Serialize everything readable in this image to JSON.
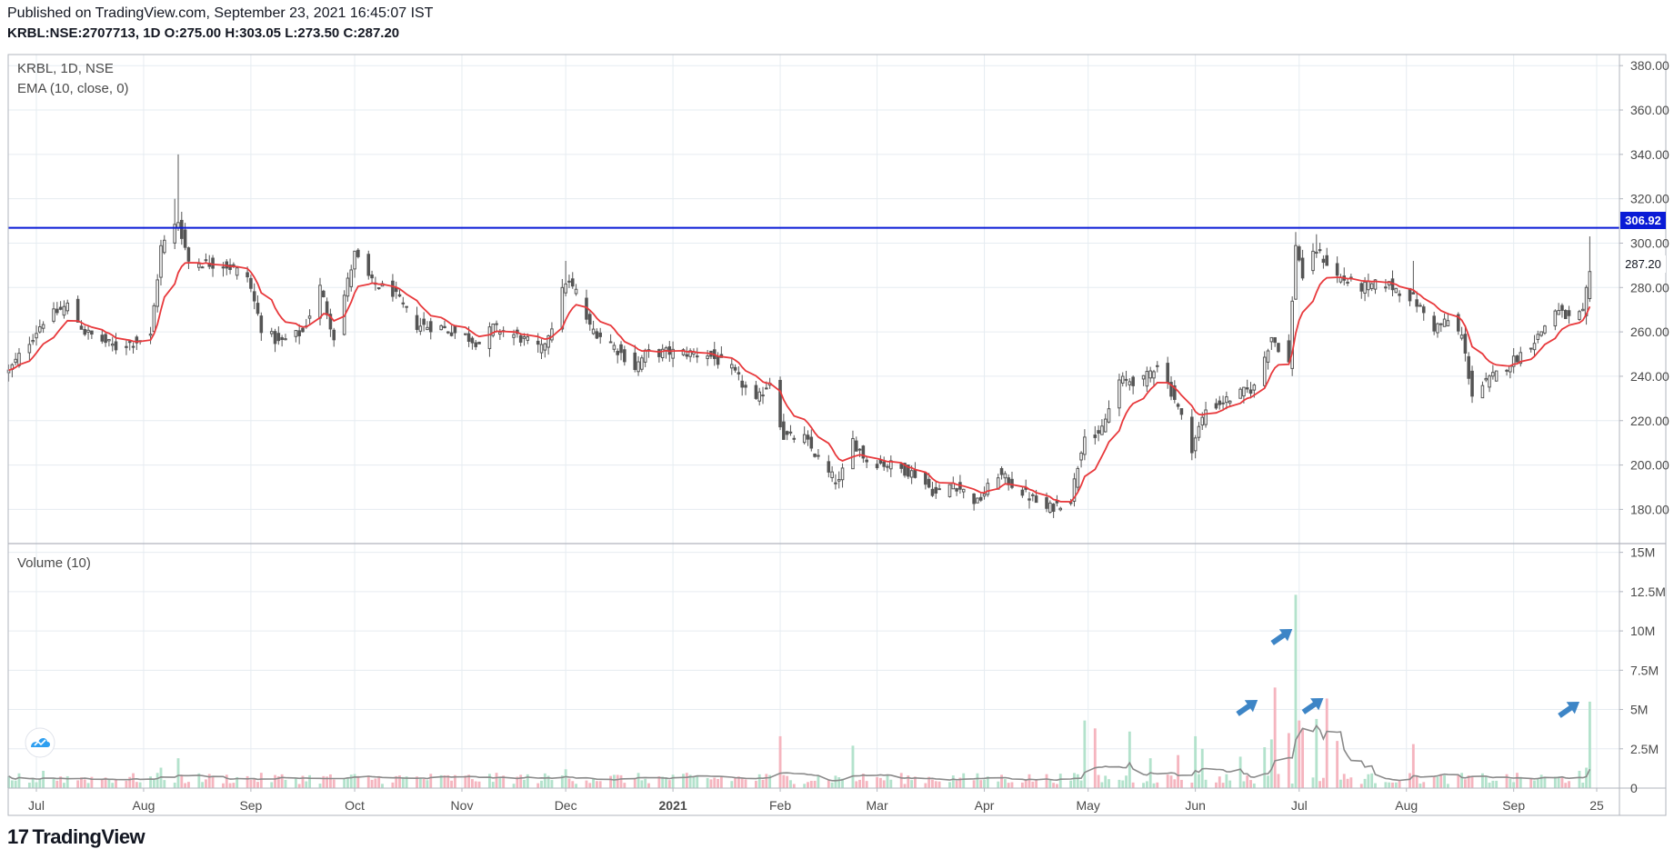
{
  "header": {
    "published": "Published on TradingView.com, September 23, 2021 16:45:07 IST",
    "symbol": "KRBL:NSE:2707713, 1D",
    "o_label": "O:",
    "o": "275.00",
    "h_label": "H:",
    "h": "303.05",
    "l_label": "L:",
    "l": "273.50",
    "c_label": "C:",
    "c": "287.20"
  },
  "legend": {
    "title": "KRBL, 1D, NSE",
    "ema": "EMA (10, close, 0)",
    "volume": "Volume (10)"
  },
  "price_badges": {
    "line_value": "306.92",
    "last_close": "287.20"
  },
  "footer": {
    "logo_text": "TradingView"
  },
  "colors": {
    "up": "#555555",
    "down": "#555555",
    "ema": "#e8393c",
    "hline": "#0a1bd6",
    "vol_up": "#b3e2cc",
    "vol_down": "#f5b5bf",
    "vol_ma": "#8a8a8a",
    "arrow": "#3d85c6",
    "grid": "#e6ecf1"
  },
  "chart_data": [
    {
      "type": "candlestick",
      "title": "KRBL, 1D, NSE",
      "y_ticks": [
        "380.00",
        "360.00",
        "340.00",
        "320.00",
        "300.00",
        "280.00",
        "260.00",
        "240.00",
        "220.00",
        "200.00",
        "180.00"
      ],
      "ylim": [
        165,
        385
      ],
      "x_ticks": [
        "Jul",
        "Aug",
        "Sep",
        "Oct",
        "Nov",
        "Dec",
        "2021",
        "Feb",
        "Mar",
        "Apr",
        "May",
        "Jun",
        "Jul",
        "Aug",
        "Sep",
        "25"
      ],
      "x_tick_dates": [
        "2020-07-01",
        "2020-08-01",
        "2020-09-01",
        "2020-10-01",
        "2020-11-01",
        "2020-12-01",
        "2021-01-01",
        "2021-02-01",
        "2021-03-01",
        "2021-04-01",
        "2021-05-01",
        "2021-06-01",
        "2021-07-01",
        "2021-08-01",
        "2021-09-01",
        "2021-09-25"
      ],
      "horizontal_line": 306.92,
      "close_anchors": [
        [
          "2020-06-23",
          242
        ],
        [
          "2020-07-03",
          265
        ],
        [
          "2020-07-10",
          272
        ],
        [
          "2020-07-15",
          260
        ],
        [
          "2020-07-24",
          253
        ],
        [
          "2020-08-03",
          258
        ],
        [
          "2020-08-06",
          298
        ],
        [
          "2020-08-11",
          310
        ],
        [
          "2020-08-14",
          292
        ],
        [
          "2020-08-25",
          290
        ],
        [
          "2020-08-31",
          285
        ],
        [
          "2020-09-04",
          262
        ],
        [
          "2020-09-09",
          255
        ],
        [
          "2020-09-16",
          260
        ],
        [
          "2020-09-21",
          280
        ],
        [
          "2020-09-25",
          258
        ],
        [
          "2020-10-01",
          295
        ],
        [
          "2020-10-06",
          282
        ],
        [
          "2020-10-12",
          278
        ],
        [
          "2020-10-19",
          263
        ],
        [
          "2020-10-26",
          262
        ],
        [
          "2020-11-02",
          258
        ],
        [
          "2020-11-06",
          255
        ],
        [
          "2020-11-10",
          262
        ],
        [
          "2020-11-17",
          258
        ],
        [
          "2020-11-24",
          252
        ],
        [
          "2020-11-27",
          263
        ],
        [
          "2020-12-01",
          283
        ],
        [
          "2020-12-04",
          278
        ],
        [
          "2020-12-08",
          262
        ],
        [
          "2020-12-14",
          255
        ],
        [
          "2020-12-21",
          244
        ],
        [
          "2020-12-24",
          250
        ],
        [
          "2020-12-31",
          251
        ],
        [
          "2021-01-11",
          250
        ],
        [
          "2021-01-18",
          243
        ],
        [
          "2021-01-25",
          228
        ],
        [
          "2021-01-29",
          238
        ],
        [
          "2021-02-02",
          213
        ],
        [
          "2021-02-08",
          212
        ],
        [
          "2021-02-15",
          196
        ],
        [
          "2021-02-18",
          192
        ],
        [
          "2021-02-22",
          211
        ],
        [
          "2021-02-26",
          202
        ],
        [
          "2021-03-05",
          200
        ],
        [
          "2021-03-12",
          196
        ],
        [
          "2021-03-18",
          187
        ],
        [
          "2021-03-23",
          192
        ],
        [
          "2021-03-30",
          183
        ],
        [
          "2021-04-05",
          196
        ],
        [
          "2021-04-12",
          188
        ],
        [
          "2021-04-19",
          180
        ],
        [
          "2021-04-26",
          185
        ],
        [
          "2021-04-30",
          215
        ],
        [
          "2021-05-04",
          212
        ],
        [
          "2021-05-10",
          238
        ],
        [
          "2021-05-17",
          238
        ],
        [
          "2021-05-21",
          246
        ],
        [
          "2021-05-26",
          230
        ],
        [
          "2021-05-31",
          208
        ],
        [
          "2021-06-04",
          225
        ],
        [
          "2021-06-11",
          230
        ],
        [
          "2021-06-18",
          235
        ],
        [
          "2021-06-23",
          258
        ],
        [
          "2021-06-28",
          246
        ],
        [
          "2021-06-30",
          300
        ],
        [
          "2021-07-02",
          285
        ],
        [
          "2021-07-06",
          297
        ],
        [
          "2021-07-12",
          285
        ],
        [
          "2021-07-19",
          280
        ],
        [
          "2021-07-26",
          282
        ],
        [
          "2021-08-03",
          275
        ],
        [
          "2021-08-09",
          262
        ],
        [
          "2021-08-13",
          265
        ],
        [
          "2021-08-17",
          258
        ],
        [
          "2021-08-20",
          232
        ],
        [
          "2021-08-27",
          241
        ],
        [
          "2021-09-03",
          250
        ],
        [
          "2021-09-08",
          258
        ],
        [
          "2021-09-13",
          270
        ],
        [
          "2021-09-17",
          266
        ],
        [
          "2021-09-21",
          268
        ],
        [
          "2021-09-23",
          287.2
        ]
      ],
      "series": [
        {
          "name": "EMA (10, close, 0)",
          "derived_from": "close",
          "period": 10
        }
      ]
    },
    {
      "type": "bar",
      "title": "Volume (10)",
      "y_ticks": [
        "15M",
        "12.5M",
        "10M",
        "7.5M",
        "5M",
        "2.5M",
        "0"
      ],
      "ylim": [
        0,
        15500000
      ],
      "base_volume": 650000,
      "spikes": [
        [
          "2020-08-11",
          1900000
        ],
        [
          "2020-08-06",
          1300000
        ],
        [
          "2020-07-03",
          1100000
        ],
        [
          "2020-12-01",
          1200000
        ],
        [
          "2021-02-01",
          3300000
        ],
        [
          "2021-02-22",
          2700000
        ],
        [
          "2021-04-30",
          4300000
        ],
        [
          "2021-05-03",
          3800000
        ],
        [
          "2021-05-13",
          3600000
        ],
        [
          "2021-05-19",
          1900000
        ],
        [
          "2021-05-27",
          2100000
        ],
        [
          "2021-06-01",
          3300000
        ],
        [
          "2021-06-03",
          2500000
        ],
        [
          "2021-06-14",
          2000000
        ],
        [
          "2021-06-21",
          2600000
        ],
        [
          "2021-06-23",
          3100000
        ],
        [
          "2021-06-24",
          6400000
        ],
        [
          "2021-06-28",
          3500000
        ],
        [
          "2021-06-30",
          12300000
        ],
        [
          "2021-07-01",
          4300000
        ],
        [
          "2021-07-02",
          3800000
        ],
        [
          "2021-07-06",
          4400000
        ],
        [
          "2021-07-09",
          5700000
        ],
        [
          "2021-07-12",
          3000000
        ],
        [
          "2021-08-03",
          2800000
        ],
        [
          "2021-09-20",
          1100000
        ],
        [
          "2021-09-22",
          1300000
        ],
        [
          "2021-09-23",
          5500000
        ]
      ],
      "series": [
        {
          "name": "Volume (10)",
          "moving_average_period": 10
        }
      ],
      "annotations": [
        "arrow-1",
        "arrow-2",
        "arrow-3",
        "arrow-4"
      ]
    }
  ]
}
